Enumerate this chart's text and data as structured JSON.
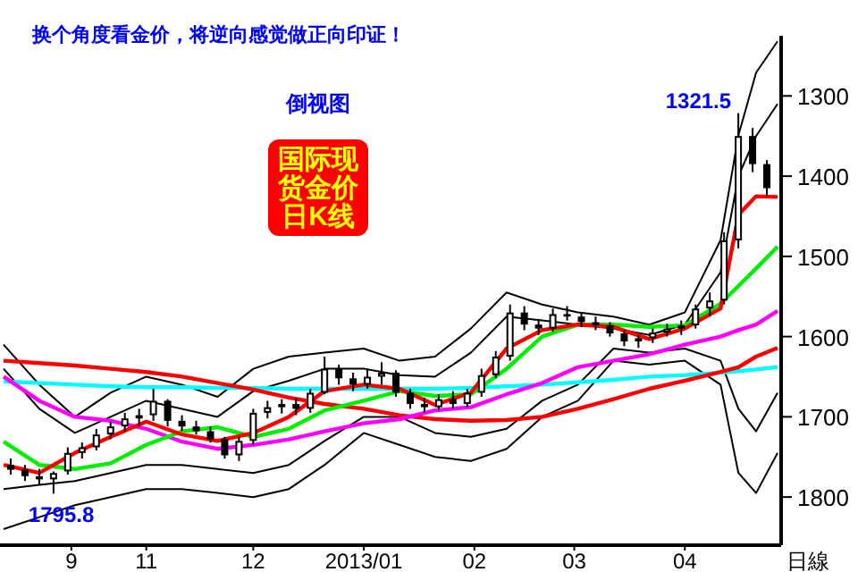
{
  "chart_data": {
    "type": "candlestick",
    "title": "换个角度看金价，将逆向感觉做正向印证！",
    "xlabel": "日線",
    "annotations": [
      "倒视图",
      "国际现货金价日K线",
      {
        "text": "1321.5",
        "x": "2013-04-16",
        "y": 1321.5
      },
      {
        "text": "1795.8",
        "x": "2012-10-06",
        "y": 1795.8
      }
    ],
    "xlim": [
      "2012-09-22",
      "2013-04-28"
    ],
    "xticks": [
      {
        "value": "2012-10-11",
        "label": "9"
      },
      {
        "value": "2012-11-01",
        "label": "11"
      },
      {
        "value": "2012-12-01",
        "label": "12"
      },
      {
        "value": "2013-01-01",
        "label": "2013/01"
      },
      {
        "value": "2013-02-01",
        "label": "02"
      },
      {
        "value": "2013-03-01",
        "label": "03"
      },
      {
        "value": "2013-04-01",
        "label": "04"
      }
    ],
    "ylim": [
      1860,
      1225
    ],
    "yticks": [
      1300,
      1400,
      1500,
      1600,
      1700,
      1800
    ],
    "grid": false,
    "x": [
      "2012-09-22",
      "2012-10-02",
      "2012-10-12",
      "2012-10-22",
      "2012-11-01",
      "2012-11-11",
      "2012-11-21",
      "2012-12-01",
      "2012-12-11",
      "2012-12-21",
      "2013-01-01",
      "2013-01-11",
      "2013-01-21",
      "2013-01-31",
      "2013-02-10",
      "2013-02-20",
      "2013-03-02",
      "2013-03-12",
      "2013-03-22",
      "2013-04-01",
      "2013-04-11",
      "2013-04-16",
      "2013-04-21",
      "2013-04-27"
    ],
    "series": [
      {
        "type": "line",
        "color": "#000000",
        "values": [
          1610,
          1660,
          1700,
          1670,
          1650,
          1660,
          1675,
          1640,
          1625,
          1620,
          1615,
          1630,
          1625,
          1590,
          1545,
          1560,
          1570,
          1575,
          1585,
          1570,
          1480,
          1349,
          1271,
          1232
        ]
      },
      {
        "type": "line",
        "color": "#000000",
        "values": [
          1640,
          1690,
          1720,
          1700,
          1680,
          1690,
          1700,
          1668,
          1655,
          1640,
          1640,
          1648,
          1650,
          1620,
          1575,
          1580,
          1585,
          1590,
          1598,
          1585,
          1520,
          1400,
          1350,
          1310
        ]
      },
      {
        "type": "line",
        "color": "#000000",
        "values": [
          1790,
          1785,
          1780,
          1770,
          1760,
          1760,
          1765,
          1770,
          1760,
          1730,
          1700,
          1700,
          1720,
          1725,
          1715,
          1680,
          1660,
          1615,
          1620,
          1615,
          1630,
          1690,
          1718,
          1670
        ]
      },
      {
        "type": "line",
        "color": "#000000",
        "values": [
          1840,
          1825,
          1810,
          1800,
          1790,
          1790,
          1795,
          1800,
          1790,
          1760,
          1720,
          1735,
          1750,
          1755,
          1740,
          1700,
          1680,
          1630,
          1635,
          1630,
          1660,
          1770,
          1795,
          1745
        ]
      },
      {
        "type": "line",
        "color": "#00ffff",
        "values": [
          1656,
          1658,
          1660,
          1662,
          1663,
          1663,
          1664,
          1664,
          1665,
          1665,
          1665,
          1665,
          1665,
          1664,
          1662,
          1660,
          1657,
          1654,
          1650,
          1648,
          1645,
          1643,
          1641,
          1638
        ]
      },
      {
        "type": "line",
        "color": "#ff0000",
        "values": [
          1630,
          1633,
          1636,
          1640,
          1644,
          1650,
          1658,
          1666,
          1676,
          1684,
          1690,
          1698,
          1703,
          1705,
          1704,
          1700,
          1690,
          1678,
          1665,
          1655,
          1644,
          1638,
          1625,
          1614
        ]
      },
      {
        "type": "line",
        "color": "#ff00ff",
        "values": [
          1650,
          1680,
          1700,
          1705,
          1715,
          1731,
          1740,
          1735,
          1728,
          1718,
          1708,
          1703,
          1692,
          1688,
          1672,
          1658,
          1638,
          1630,
          1622,
          1610,
          1600,
          1592,
          1585,
          1568
        ]
      },
      {
        "type": "line",
        "color": "#00ee00",
        "values": [
          1731,
          1760,
          1765,
          1758,
          1735,
          1718,
          1713,
          1725,
          1715,
          1692,
          1680,
          1668,
          1674,
          1672,
          1640,
          1600,
          1585,
          1585,
          1588,
          1586,
          1559,
          1537,
          1515,
          1488
        ]
      },
      {
        "type": "line",
        "color": "#ff0000",
        "values": [
          1760,
          1770,
          1745,
          1725,
          1706,
          1722,
          1730,
          1720,
          1700,
          1668,
          1660,
          1665,
          1685,
          1670,
          1615,
          1592,
          1585,
          1588,
          1603,
          1590,
          1565,
          1448,
          1425,
          1426
        ]
      },
      {
        "color": "#000000",
        "x": [
          "2012-09-24",
          "2012-09-28",
          "2012-10-02",
          "2012-10-06",
          "2012-10-10",
          "2012-10-14",
          "2012-10-18",
          "2012-10-22",
          "2012-10-26",
          "2012-10-30",
          "2012-11-03",
          "2012-11-07",
          "2012-11-11",
          "2012-11-15",
          "2012-11-19",
          "2012-11-23",
          "2012-11-27",
          "2012-12-01",
          "2012-12-05",
          "2012-12-09",
          "2012-12-13",
          "2012-12-17",
          "2012-12-21",
          "2012-12-25",
          "2012-12-29",
          "2013-01-02",
          "2013-01-06",
          "2013-01-10",
          "2013-01-14",
          "2013-01-18",
          "2013-01-22",
          "2013-01-26",
          "2013-01-30",
          "2013-02-03",
          "2013-02-07",
          "2013-02-11",
          "2013-02-15",
          "2013-02-19",
          "2013-02-23",
          "2013-02-27",
          "2013-03-03",
          "2013-03-07",
          "2013-03-11",
          "2013-03-15",
          "2013-03-19",
          "2013-03-23",
          "2013-03-27",
          "2013-03-31",
          "2013-04-04",
          "2013-04-08",
          "2013-04-12",
          "2013-04-16",
          "2013-04-20",
          "2013-04-24"
        ],
        "ohlc": [
          [
            1760,
            1772,
            1752,
            1766
          ],
          [
            1766,
            1780,
            1760,
            1774
          ],
          [
            1774,
            1785,
            1765,
            1778
          ],
          [
            1778,
            1795.8,
            1768,
            1770
          ],
          [
            1768,
            1772,
            1738,
            1745
          ],
          [
            1745,
            1752,
            1732,
            1738
          ],
          [
            1738,
            1742,
            1715,
            1722
          ],
          [
            1722,
            1728,
            1706,
            1712
          ],
          [
            1712,
            1718,
            1695,
            1702
          ],
          [
            1702,
            1712,
            1690,
            1698
          ],
          [
            1698,
            1705,
            1665,
            1680
          ],
          [
            1680,
            1712,
            1678,
            1705
          ],
          [
            1705,
            1718,
            1698,
            1712
          ],
          [
            1712,
            1722,
            1705,
            1718
          ],
          [
            1718,
            1732,
            1712,
            1728
          ],
          [
            1728,
            1752,
            1725,
            1748
          ],
          [
            1748,
            1755,
            1725,
            1730
          ],
          [
            1730,
            1735,
            1690,
            1695
          ],
          [
            1695,
            1702,
            1680,
            1688
          ],
          [
            1688,
            1696,
            1678,
            1684
          ],
          [
            1684,
            1698,
            1676,
            1690
          ],
          [
            1690,
            1695,
            1665,
            1670
          ],
          [
            1670,
            1672,
            1625,
            1640
          ],
          [
            1640,
            1660,
            1635,
            1652
          ],
          [
            1652,
            1668,
            1645,
            1660
          ],
          [
            1660,
            1665,
            1640,
            1650
          ],
          [
            1650,
            1660,
            1632,
            1645
          ],
          [
            1645,
            1675,
            1642,
            1670
          ],
          [
            1670,
            1690,
            1665,
            1684
          ],
          [
            1684,
            1695,
            1676,
            1688
          ],
          [
            1688,
            1692,
            1672,
            1678
          ],
          [
            1678,
            1690,
            1668,
            1684
          ],
          [
            1684,
            1688,
            1665,
            1670
          ],
          [
            1670,
            1675,
            1640,
            1648
          ],
          [
            1648,
            1652,
            1618,
            1625
          ],
          [
            1625,
            1630,
            1560,
            1570
          ],
          [
            1570,
            1592,
            1562,
            1585
          ],
          [
            1585,
            1598,
            1578,
            1590
          ],
          [
            1590,
            1594,
            1565,
            1572
          ],
          [
            1572,
            1580,
            1562,
            1575
          ],
          [
            1575,
            1588,
            1570,
            1582
          ],
          [
            1582,
            1592,
            1575,
            1586
          ],
          [
            1586,
            1600,
            1582,
            1596
          ],
          [
            1596,
            1612,
            1592,
            1606
          ],
          [
            1606,
            1614,
            1598,
            1602
          ],
          [
            1602,
            1608,
            1590,
            1595
          ],
          [
            1595,
            1600,
            1584,
            1590
          ],
          [
            1590,
            1598,
            1580,
            1586
          ],
          [
            1586,
            1590,
            1560,
            1565
          ],
          [
            1565,
            1575,
            1545,
            1555
          ],
          [
            1555,
            1560,
            1470,
            1480
          ],
          [
            1480,
            1490,
            1321.5,
            1350
          ],
          [
            1350,
            1395,
            1340,
            1385
          ],
          [
            1385,
            1425,
            1380,
            1415
          ]
        ]
      }
    ]
  }
}
